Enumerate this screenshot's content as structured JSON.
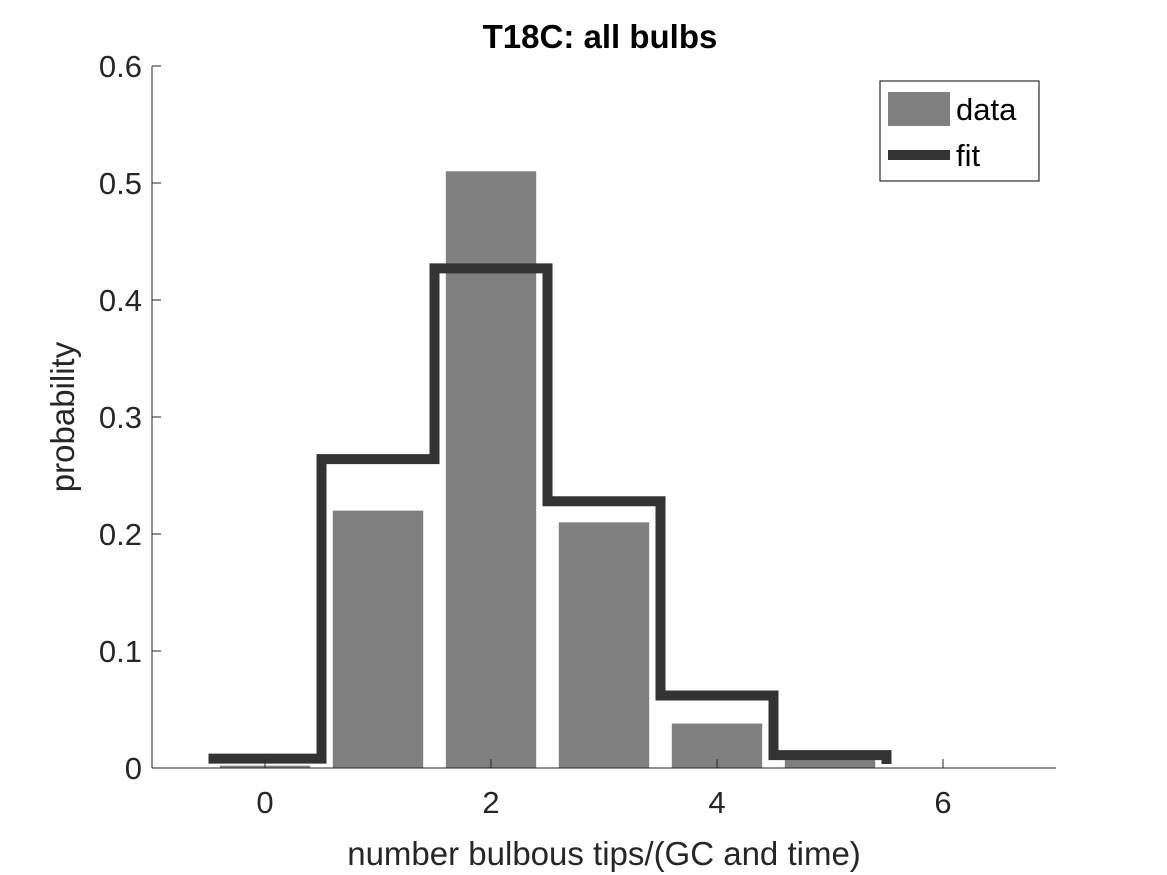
{
  "chart_data": {
    "type": "bar",
    "title": "T18C: all bulbs",
    "xlabel": "number bulbous tips/(GC and time)",
    "ylabel": "probability",
    "xlim": [
      -1,
      7
    ],
    "ylim": [
      0,
      0.6
    ],
    "xticks": [
      0,
      2,
      4,
      6
    ],
    "yticks": [
      0,
      0.1,
      0.2,
      0.3,
      0.4,
      0.5,
      0.6
    ],
    "grid": false,
    "legend_position": "top-right",
    "series": [
      {
        "name": "data",
        "kind": "bar",
        "color": "#808080",
        "x": [
          0,
          1,
          2,
          3,
          4,
          5
        ],
        "values": [
          0.002,
          0.22,
          0.51,
          0.21,
          0.038,
          0.007
        ]
      },
      {
        "name": "fit",
        "kind": "stairs",
        "color": "#333333",
        "x": [
          0,
          1,
          2,
          3,
          4,
          5
        ],
        "values": [
          0.008,
          0.264,
          0.427,
          0.228,
          0.062,
          0.011
        ]
      }
    ]
  }
}
